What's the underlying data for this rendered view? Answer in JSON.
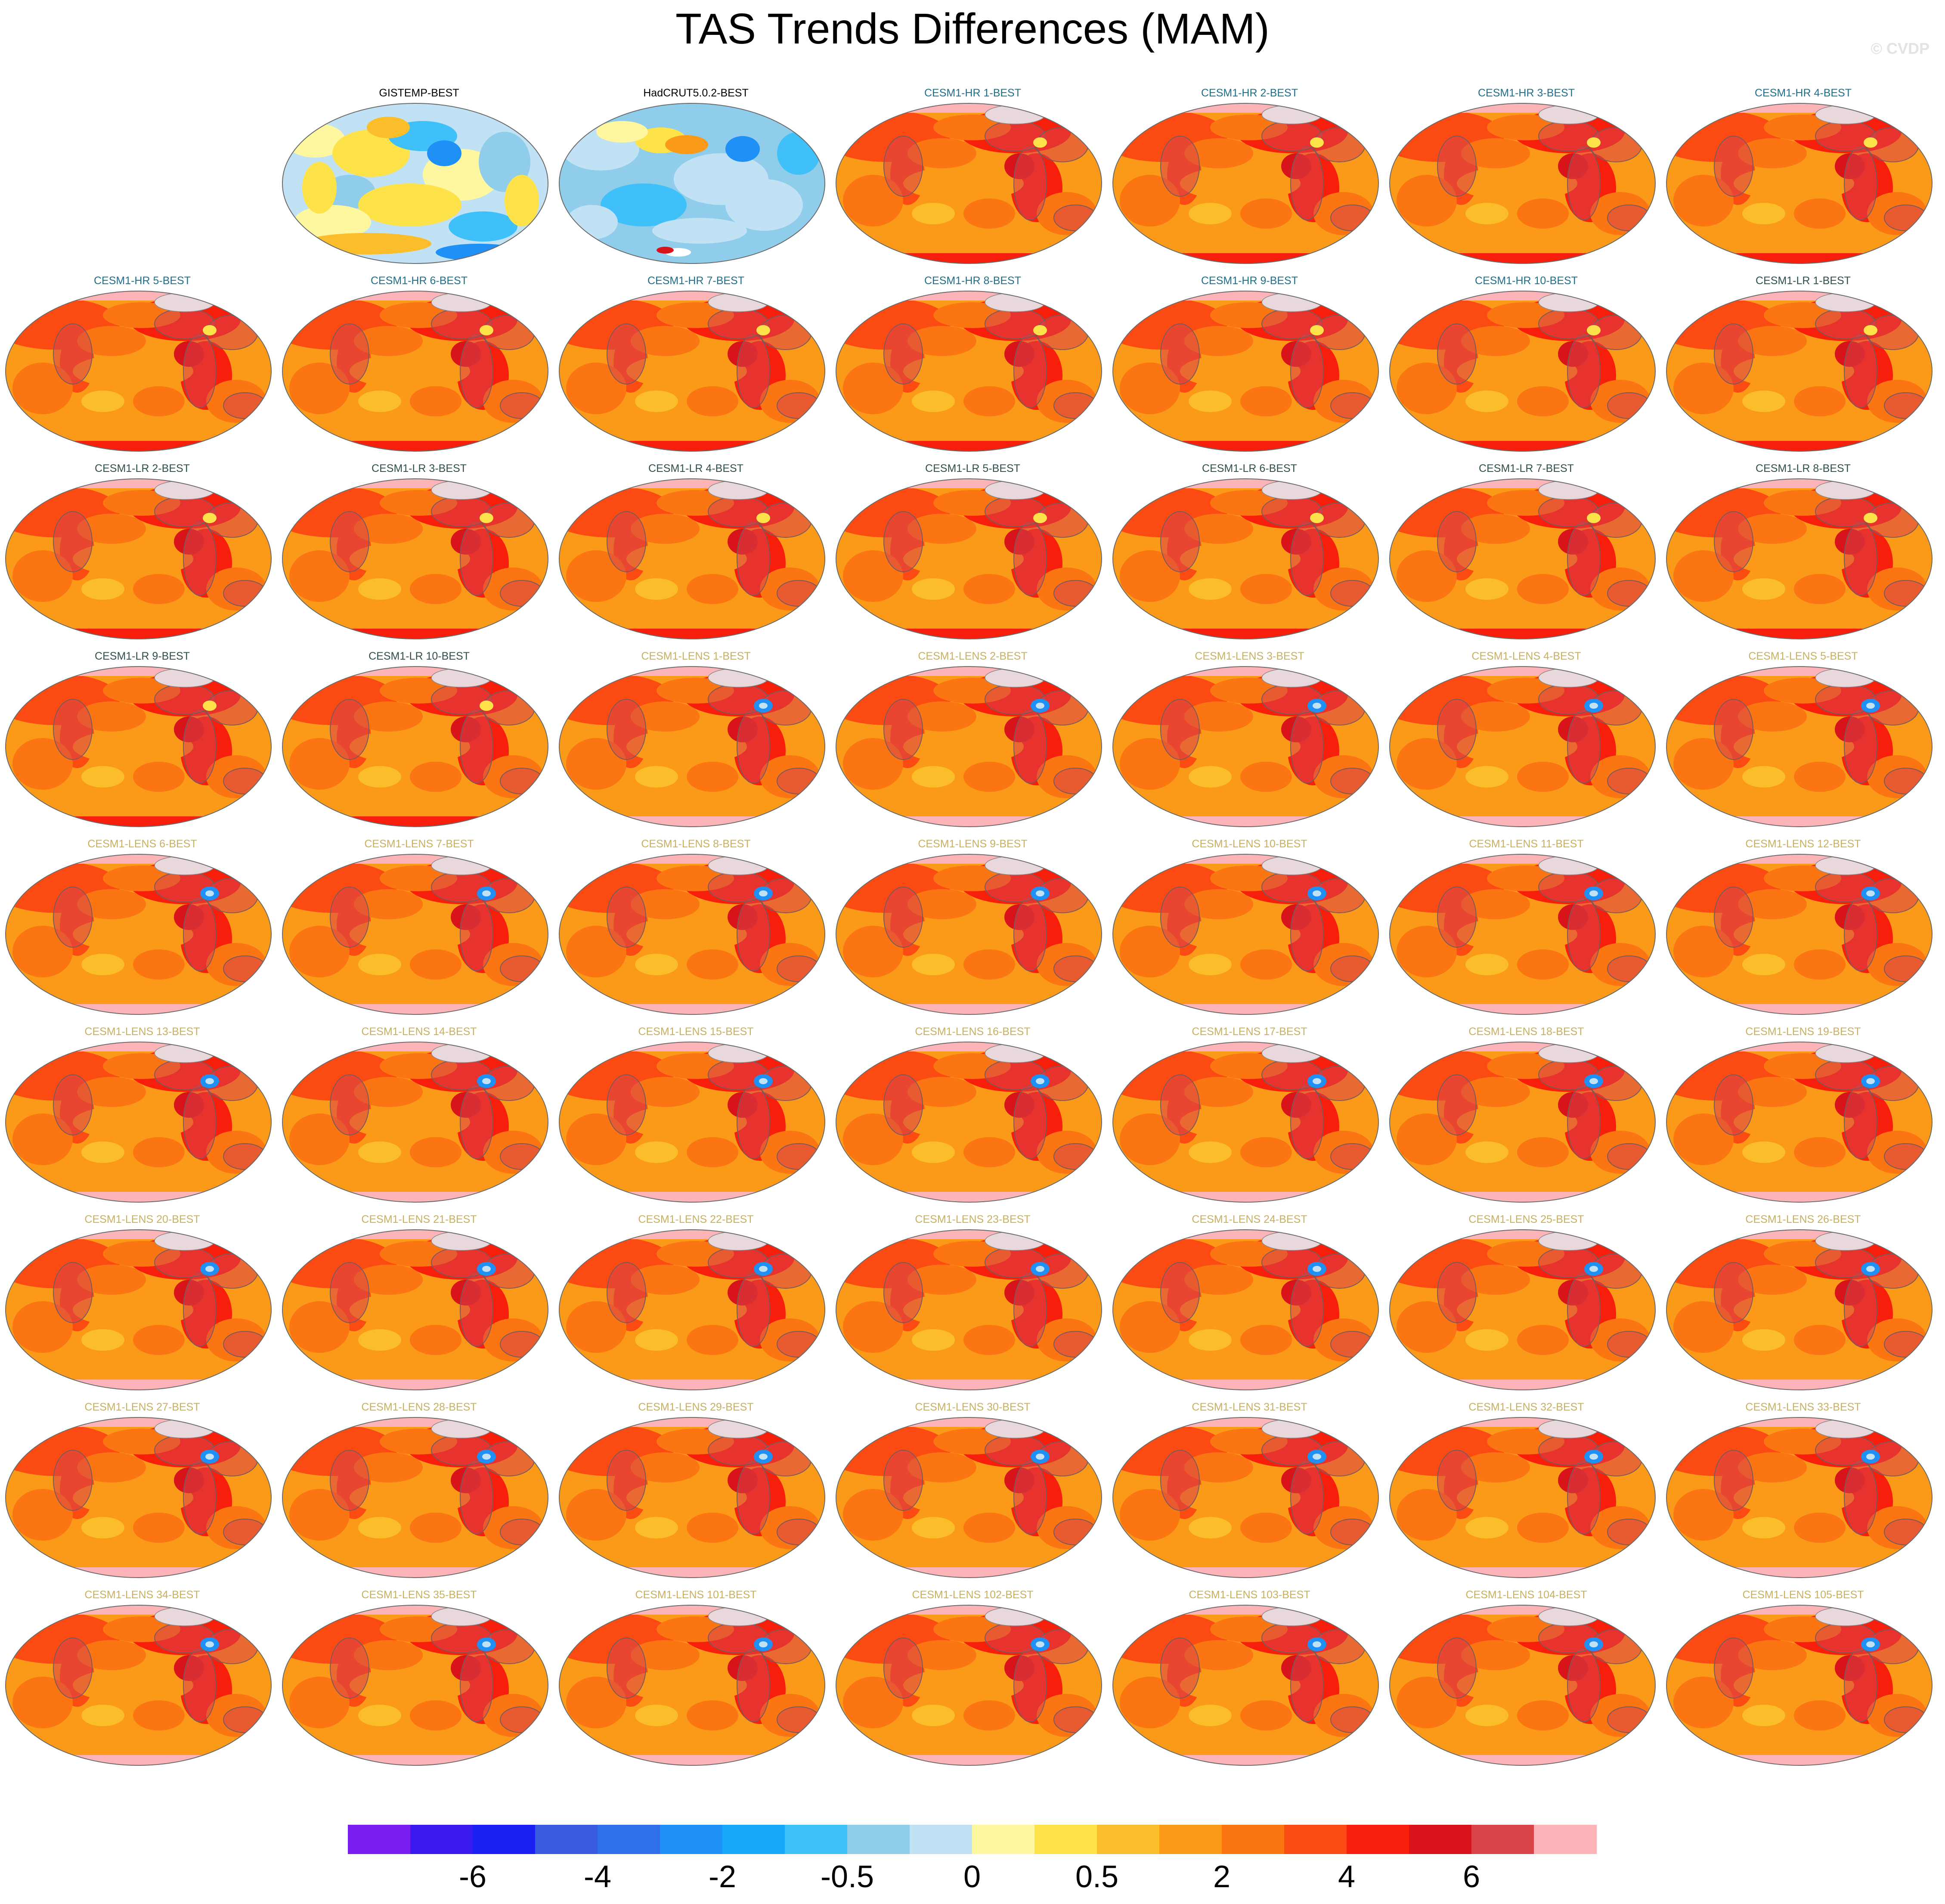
{
  "title": "TAS Trends Differences (MAM)",
  "watermark": "© CVDP",
  "map_panels": [
    {
      "label": "GISTEMP-BEST",
      "group": "obs",
      "pattern": "obs1"
    },
    {
      "label": "HadCRUT5.0.2-BEST",
      "group": "obs",
      "pattern": "obs2"
    },
    {
      "label": "CESM1-HR 1-BEST",
      "group": "hr",
      "pattern": "model"
    },
    {
      "label": "CESM1-HR 2-BEST",
      "group": "hr",
      "pattern": "model"
    },
    {
      "label": "CESM1-HR 3-BEST",
      "group": "hr",
      "pattern": "model"
    },
    {
      "label": "CESM1-HR 4-BEST",
      "group": "hr",
      "pattern": "model"
    },
    {
      "label": "CESM1-HR 5-BEST",
      "group": "hr",
      "pattern": "model"
    },
    {
      "label": "CESM1-HR 6-BEST",
      "group": "hr",
      "pattern": "model"
    },
    {
      "label": "CESM1-HR 7-BEST",
      "group": "hr",
      "pattern": "model"
    },
    {
      "label": "CESM1-HR 8-BEST",
      "group": "hr",
      "pattern": "model"
    },
    {
      "label": "CESM1-HR 9-BEST",
      "group": "hr",
      "pattern": "model"
    },
    {
      "label": "CESM1-HR 10-BEST",
      "group": "hr",
      "pattern": "model"
    },
    {
      "label": "CESM1-LR 1-BEST",
      "group": "lr",
      "pattern": "model"
    },
    {
      "label": "CESM1-LR 2-BEST",
      "group": "lr",
      "pattern": "model"
    },
    {
      "label": "CESM1-LR 3-BEST",
      "group": "lr",
      "pattern": "model"
    },
    {
      "label": "CESM1-LR 4-BEST",
      "group": "lr",
      "pattern": "model"
    },
    {
      "label": "CESM1-LR 5-BEST",
      "group": "lr",
      "pattern": "model"
    },
    {
      "label": "CESM1-LR 6-BEST",
      "group": "lr",
      "pattern": "model"
    },
    {
      "label": "CESM1-LR 7-BEST",
      "group": "lr",
      "pattern": "model"
    },
    {
      "label": "CESM1-LR 8-BEST",
      "group": "lr",
      "pattern": "model"
    },
    {
      "label": "CESM1-LR 9-BEST",
      "group": "lr",
      "pattern": "model"
    },
    {
      "label": "CESM1-LR 10-BEST",
      "group": "lr",
      "pattern": "model"
    },
    {
      "label": "CESM1-LENS 1-BEST",
      "group": "lens",
      "pattern": "lens"
    },
    {
      "label": "CESM1-LENS 2-BEST",
      "group": "lens",
      "pattern": "lens"
    },
    {
      "label": "CESM1-LENS 3-BEST",
      "group": "lens",
      "pattern": "lens"
    },
    {
      "label": "CESM1-LENS 4-BEST",
      "group": "lens",
      "pattern": "lens"
    },
    {
      "label": "CESM1-LENS 5-BEST",
      "group": "lens",
      "pattern": "lens"
    },
    {
      "label": "CESM1-LENS 6-BEST",
      "group": "lens",
      "pattern": "lens"
    },
    {
      "label": "CESM1-LENS 7-BEST",
      "group": "lens",
      "pattern": "lens"
    },
    {
      "label": "CESM1-LENS 8-BEST",
      "group": "lens",
      "pattern": "lens"
    },
    {
      "label": "CESM1-LENS 9-BEST",
      "group": "lens",
      "pattern": "lens"
    },
    {
      "label": "CESM1-LENS 10-BEST",
      "group": "lens",
      "pattern": "lens"
    },
    {
      "label": "CESM1-LENS 11-BEST",
      "group": "lens",
      "pattern": "lens"
    },
    {
      "label": "CESM1-LENS 12-BEST",
      "group": "lens",
      "pattern": "lens"
    },
    {
      "label": "CESM1-LENS 13-BEST",
      "group": "lens",
      "pattern": "lens"
    },
    {
      "label": "CESM1-LENS 14-BEST",
      "group": "lens",
      "pattern": "lens"
    },
    {
      "label": "CESM1-LENS 15-BEST",
      "group": "lens",
      "pattern": "lens"
    },
    {
      "label": "CESM1-LENS 16-BEST",
      "group": "lens",
      "pattern": "lens"
    },
    {
      "label": "CESM1-LENS 17-BEST",
      "group": "lens",
      "pattern": "lens"
    },
    {
      "label": "CESM1-LENS 18-BEST",
      "group": "lens",
      "pattern": "lens"
    },
    {
      "label": "CESM1-LENS 19-BEST",
      "group": "lens",
      "pattern": "lens"
    },
    {
      "label": "CESM1-LENS 20-BEST",
      "group": "lens",
      "pattern": "lens"
    },
    {
      "label": "CESM1-LENS 21-BEST",
      "group": "lens",
      "pattern": "lens"
    },
    {
      "label": "CESM1-LENS 22-BEST",
      "group": "lens",
      "pattern": "lens"
    },
    {
      "label": "CESM1-LENS 23-BEST",
      "group": "lens",
      "pattern": "lens"
    },
    {
      "label": "CESM1-LENS 24-BEST",
      "group": "lens",
      "pattern": "lens"
    },
    {
      "label": "CESM1-LENS 25-BEST",
      "group": "lens",
      "pattern": "lens"
    },
    {
      "label": "CESM1-LENS 26-BEST",
      "group": "lens",
      "pattern": "lens"
    },
    {
      "label": "CESM1-LENS 27-BEST",
      "group": "lens",
      "pattern": "lens"
    },
    {
      "label": "CESM1-LENS 28-BEST",
      "group": "lens",
      "pattern": "lens"
    },
    {
      "label": "CESM1-LENS 29-BEST",
      "group": "lens",
      "pattern": "lens"
    },
    {
      "label": "CESM1-LENS 30-BEST",
      "group": "lens",
      "pattern": "lens"
    },
    {
      "label": "CESM1-LENS 31-BEST",
      "group": "lens",
      "pattern": "lens"
    },
    {
      "label": "CESM1-LENS 32-BEST",
      "group": "lens",
      "pattern": "lens"
    },
    {
      "label": "CESM1-LENS 33-BEST",
      "group": "lens",
      "pattern": "lens"
    },
    {
      "label": "CESM1-LENS 34-BEST",
      "group": "lens",
      "pattern": "lens"
    },
    {
      "label": "CESM1-LENS 35-BEST",
      "group": "lens",
      "pattern": "lens"
    },
    {
      "label": "CESM1-LENS 101-BEST",
      "group": "lens",
      "pattern": "lens"
    },
    {
      "label": "CESM1-LENS 102-BEST",
      "group": "lens",
      "pattern": "lens"
    },
    {
      "label": "CESM1-LENS 103-BEST",
      "group": "lens",
      "pattern": "lens"
    },
    {
      "label": "CESM1-LENS 104-BEST",
      "group": "lens",
      "pattern": "lens"
    },
    {
      "label": "CESM1-LENS 105-BEST",
      "group": "lens",
      "pattern": "lens"
    }
  ],
  "label_colors": {
    "obs": "#000000",
    "hr": "#1f6f8b",
    "lr": "#2f4f4f",
    "lens": "#c8b060"
  },
  "colorbar": {
    "colors": [
      "#7a1ff0",
      "#3a18f0",
      "#1a20f2",
      "#3a5ae0",
      "#2f6fe8",
      "#1f90f5",
      "#18a8f8",
      "#40c0f8",
      "#90cdea",
      "#c0e2f4",
      "#fff7a0",
      "#fde24a",
      "#fbbe2a",
      "#fb9a18",
      "#fb7512",
      "#fb4a12",
      "#f81e0c",
      "#d8141a",
      "#d84448",
      "#fdb4b8"
    ],
    "tick_labels": [
      "-6",
      "-4",
      "-2",
      "-0.5",
      "0",
      "0.5",
      "2",
      "4",
      "6"
    ]
  }
}
